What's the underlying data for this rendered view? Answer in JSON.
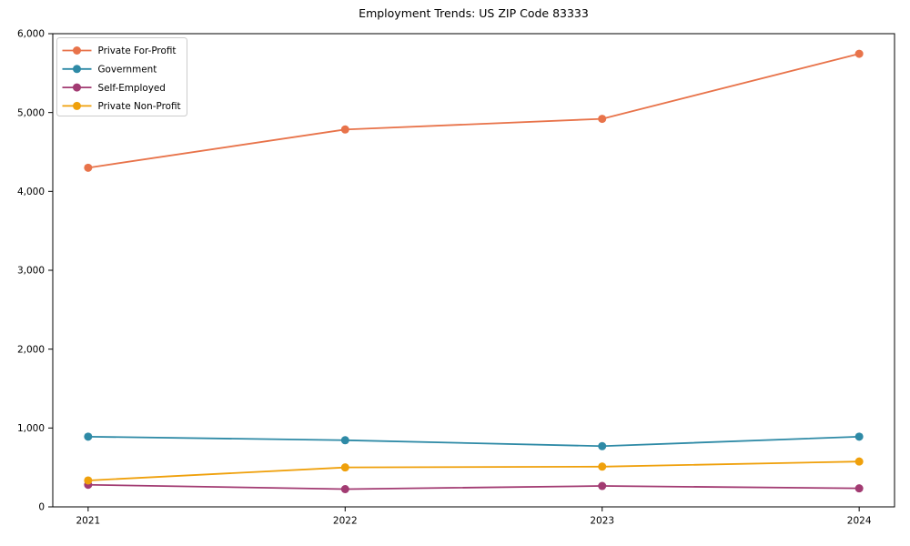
{
  "chart": {
    "title": "Employment Trends: US ZIP Code 83333"
  },
  "chart_data": {
    "type": "line",
    "title": "Employment Trends: US ZIP Code 83333",
    "xlabel": "",
    "ylabel": "",
    "categories": [
      "2021",
      "2022",
      "2023",
      "2024"
    ],
    "series": [
      {
        "name": "Private For-Profit",
        "color": "#E8734A",
        "values": [
          4300,
          4785,
          4920,
          5745
        ]
      },
      {
        "name": "Government",
        "color": "#2E8AA6",
        "values": [
          890,
          845,
          770,
          890
        ]
      },
      {
        "name": "Self-Employed",
        "color": "#A23B72",
        "values": [
          280,
          225,
          265,
          235
        ]
      },
      {
        "name": "Private Non-Profit",
        "color": "#EFA00B",
        "values": [
          335,
          500,
          510,
          575
        ]
      }
    ],
    "ylim": [
      0,
      6000
    ],
    "yticks": [
      0,
      1000,
      2000,
      3000,
      4000,
      5000,
      6000
    ],
    "grid": false,
    "legend_position": "upper left",
    "axis_color": "#000000",
    "tick_label_color": "#000000",
    "legend_border_color": "#cccccc",
    "legend_background": "#ffffff"
  }
}
